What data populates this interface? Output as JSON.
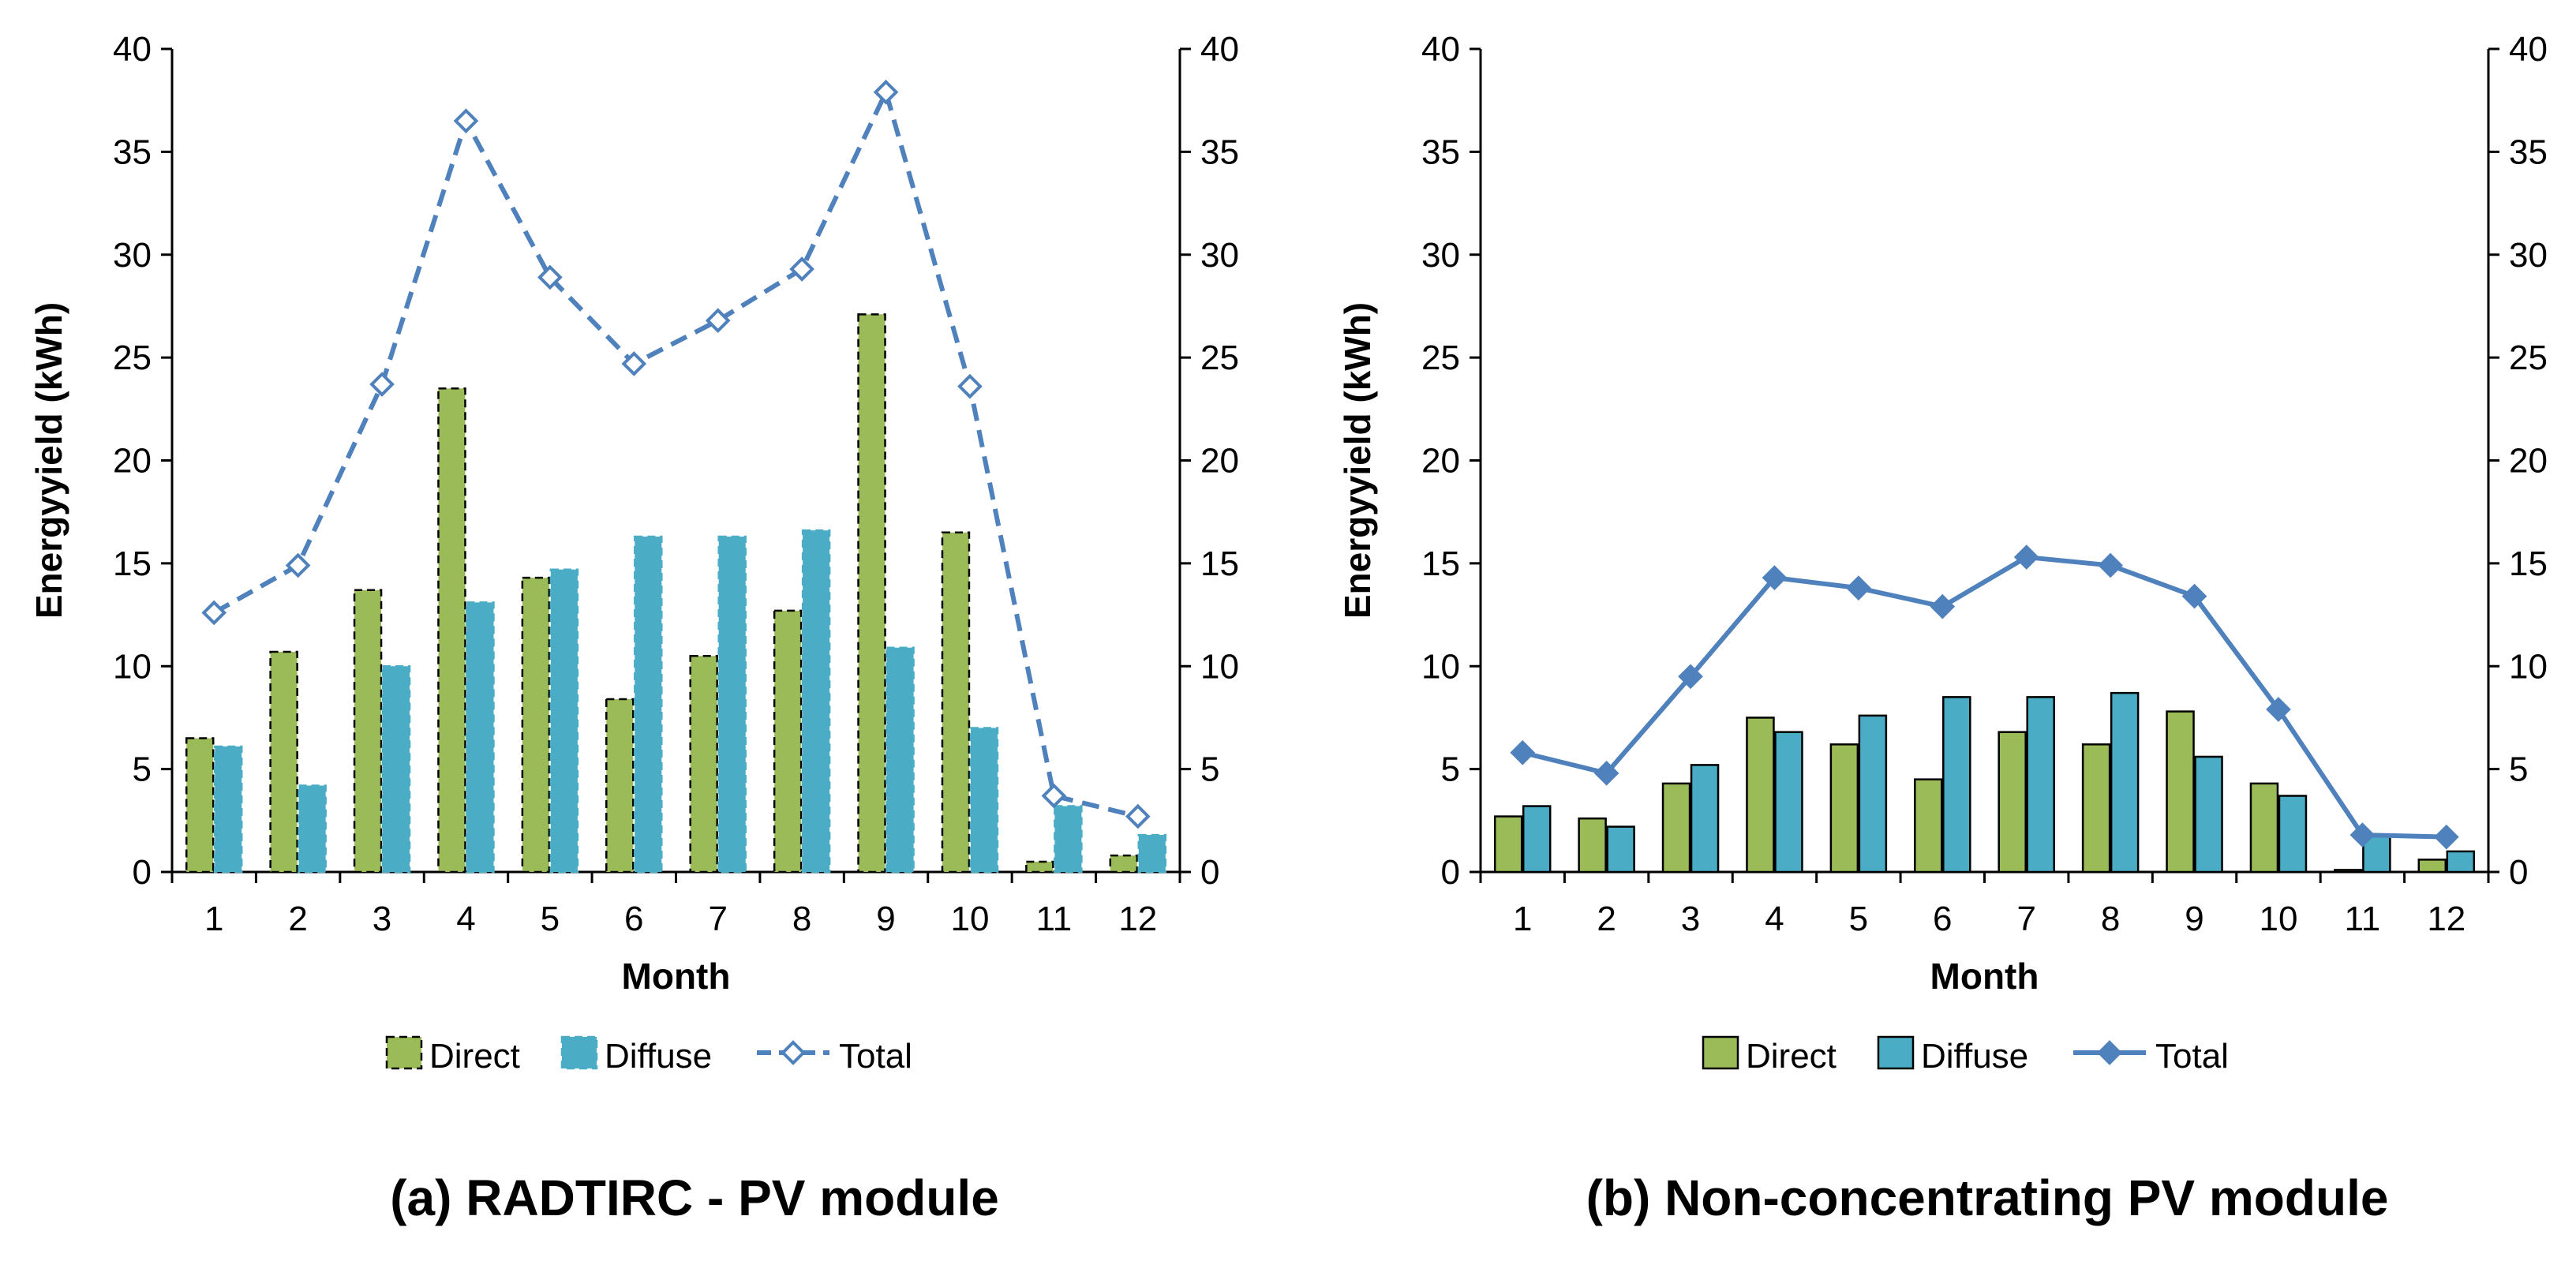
{
  "chart_data": [
    {
      "type": "bar",
      "title": "(a) RADTIRC - PV module",
      "xlabel": "Month",
      "ylabel": "Energyyield (kWh)",
      "ylim": [
        0,
        40
      ],
      "yticks": [
        "0",
        "5",
        "10",
        "15",
        "20",
        "25",
        "30",
        "35",
        "40"
      ],
      "y2ticks": [
        "0",
        "5",
        "10",
        "15",
        "20",
        "25",
        "30",
        "35",
        "40"
      ],
      "categories": [
        "1",
        "2",
        "3",
        "4",
        "5",
        "6",
        "7",
        "8",
        "9",
        "10",
        "11",
        "12"
      ],
      "grid": false,
      "legend_position": "bottom",
      "series": [
        {
          "name": "Direct",
          "kind": "bar",
          "style": "dashed",
          "values": [
            6.5,
            10.7,
            13.7,
            23.5,
            14.3,
            8.4,
            10.5,
            12.7,
            27.1,
            16.5,
            0.5,
            0.8
          ],
          "color": "#9bbb59",
          "edge": "#000000"
        },
        {
          "name": "Diffuse",
          "kind": "bar",
          "style": "dashed",
          "values": [
            6.1,
            4.2,
            10.0,
            13.1,
            14.7,
            16.3,
            16.3,
            16.6,
            10.9,
            7.0,
            3.2,
            1.8
          ],
          "color": "#4bacc6",
          "edge": "#4bacc6"
        },
        {
          "name": "Total",
          "kind": "line",
          "style": "dashed",
          "marker": "diamond-open",
          "values": [
            12.6,
            14.9,
            23.7,
            36.5,
            28.9,
            24.7,
            26.8,
            29.3,
            37.9,
            23.6,
            3.7,
            2.7
          ],
          "color": "#4f81bd"
        }
      ]
    },
    {
      "type": "bar",
      "title": "(b) Non-concentrating PV module",
      "xlabel": "Month",
      "ylabel": "Energyyield (kWh)",
      "ylim": [
        0,
        40
      ],
      "yticks": [
        "0",
        "5",
        "10",
        "15",
        "20",
        "25",
        "30",
        "35",
        "40"
      ],
      "y2ticks": [
        "0",
        "5",
        "10",
        "15",
        "20",
        "25",
        "30",
        "35",
        "40"
      ],
      "categories": [
        "1",
        "2",
        "3",
        "4",
        "5",
        "6",
        "7",
        "8",
        "9",
        "10",
        "11",
        "12"
      ],
      "grid": false,
      "legend_position": "bottom",
      "series": [
        {
          "name": "Direct",
          "kind": "bar",
          "style": "solid",
          "values": [
            2.7,
            2.6,
            4.3,
            7.5,
            6.2,
            4.5,
            6.8,
            6.2,
            7.8,
            4.3,
            0.1,
            0.6
          ],
          "color": "#9bbb59",
          "edge": "#000000"
        },
        {
          "name": "Diffuse",
          "kind": "bar",
          "style": "solid",
          "values": [
            3.2,
            2.2,
            5.2,
            6.8,
            7.6,
            8.5,
            8.5,
            8.7,
            5.6,
            3.7,
            1.8,
            1.0
          ],
          "color": "#4bacc6",
          "edge": "#000000"
        },
        {
          "name": "Total",
          "kind": "line",
          "style": "solid",
          "marker": "diamond-filled",
          "values": [
            5.8,
            4.8,
            9.5,
            14.3,
            13.8,
            12.9,
            15.3,
            14.9,
            13.4,
            7.9,
            1.8,
            1.7
          ],
          "color": "#4f81bd"
        }
      ]
    }
  ]
}
